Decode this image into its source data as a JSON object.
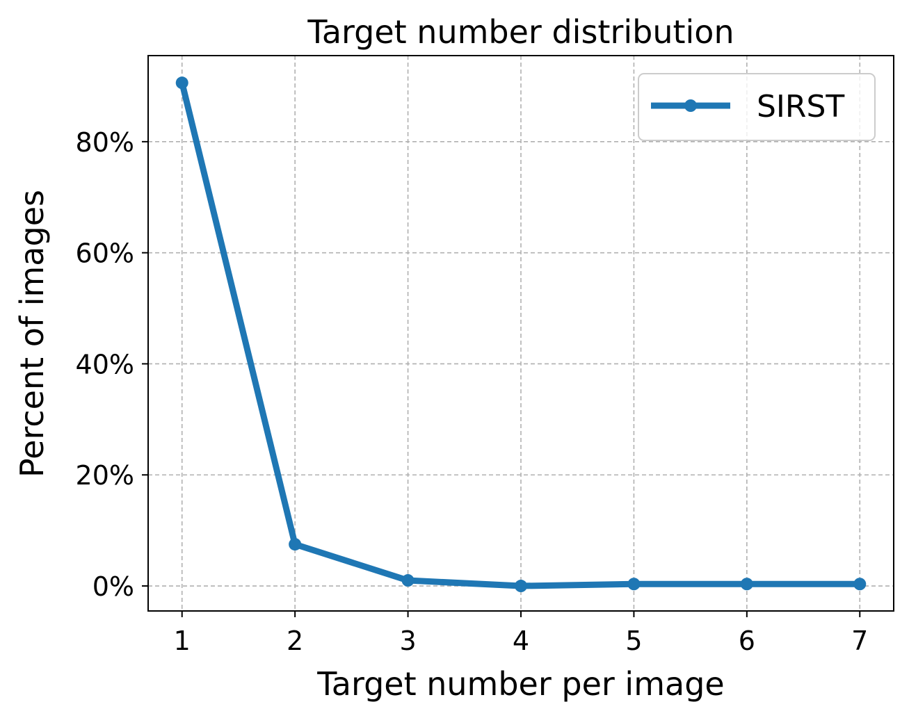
{
  "chart_data": {
    "type": "line",
    "title": "Target number distribution",
    "xlabel": "Target number per image",
    "ylabel": "Percent of images",
    "x": [
      1,
      2,
      3,
      4,
      5,
      6,
      7
    ],
    "xticks": [
      "1",
      "2",
      "3",
      "4",
      "5",
      "6",
      "7"
    ],
    "xlim": [
      0.7,
      7.3
    ],
    "yticks": [
      0,
      20,
      40,
      60,
      80
    ],
    "ytick_labels": [
      "0%",
      "20%",
      "40%",
      "60%",
      "80%"
    ],
    "ylim": [
      -4.5,
      95.5
    ],
    "series": [
      {
        "name": "SIRST",
        "values": [
          90.6,
          7.5,
          1.0,
          0.0,
          0.35,
          0.35,
          0.35
        ],
        "color": "#1f77b4"
      }
    ],
    "grid": true,
    "legend": "top-right"
  }
}
